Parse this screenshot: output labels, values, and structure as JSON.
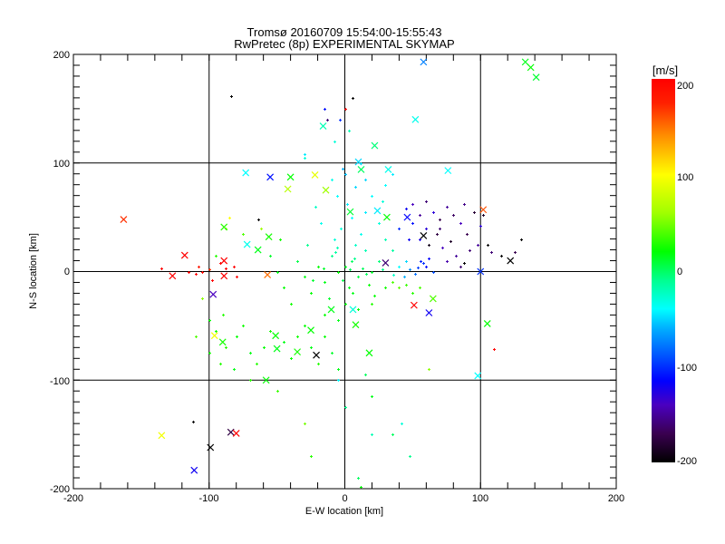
{
  "chart_data": {
    "type": "scatter",
    "title": "Tromsø 20160709 15:54:00-15:55:43",
    "subtitle": "RwPretec (8p) EXPERIMENTAL SKYMAP",
    "xlabel": "E-W location [km]",
    "ylabel": "N-S location [km]",
    "xlim": [
      -200,
      200
    ],
    "ylim": [
      -200,
      200
    ],
    "xticks": [
      "-200",
      "-100",
      "0",
      "100",
      "200"
    ],
    "yticks": [
      "-200",
      "-100",
      "0",
      "100",
      "200"
    ],
    "grid": true,
    "colorbar": {
      "label": "[m/s]",
      "range": [
        -200,
        200
      ],
      "ticks": [
        "-200",
        "-100",
        "0",
        "100",
        "200"
      ],
      "stops": [
        [
          -200,
          "#000000"
        ],
        [
          -170,
          "#3a0050"
        ],
        [
          -140,
          "#4a00c0"
        ],
        [
          -115,
          "#0000ff"
        ],
        [
          -60,
          "#00b0ff"
        ],
        [
          -40,
          "#00ffff"
        ],
        [
          -10,
          "#00ff90"
        ],
        [
          20,
          "#00ff00"
        ],
        [
          60,
          "#a0ff00"
        ],
        [
          100,
          "#ffff00"
        ],
        [
          140,
          "#ff9000"
        ],
        [
          175,
          "#ff2000"
        ],
        [
          200,
          "#ff0000"
        ]
      ]
    },
    "dots_fields": [
      "x_km",
      "y_km",
      "velocity_m_s"
    ],
    "dots": [
      [
        0,
        5,
        10
      ],
      [
        5,
        10,
        0
      ],
      [
        -5,
        0,
        20
      ],
      [
        10,
        -5,
        5
      ],
      [
        -10,
        15,
        -10
      ],
      [
        15,
        20,
        -20
      ],
      [
        -15,
        -10,
        15
      ],
      [
        20,
        0,
        10
      ],
      [
        25,
        10,
        -5
      ],
      [
        -20,
        5,
        20
      ],
      [
        3,
        -15,
        15
      ],
      [
        8,
        25,
        -25
      ],
      [
        -8,
        30,
        -30
      ],
      [
        12,
        35,
        -35
      ],
      [
        -3,
        40,
        -30
      ],
      [
        18,
        -12,
        20
      ],
      [
        30,
        -15,
        25
      ],
      [
        35,
        -10,
        40
      ],
      [
        40,
        -15,
        45
      ],
      [
        45,
        -12,
        35
      ],
      [
        50,
        -20,
        30
      ],
      [
        55,
        -15,
        40
      ],
      [
        -25,
        -20,
        20
      ],
      [
        -30,
        -5,
        15
      ],
      [
        -35,
        10,
        5
      ],
      [
        -28,
        25,
        -10
      ],
      [
        -18,
        45,
        -35
      ],
      [
        5,
        50,
        -40
      ],
      [
        15,
        55,
        -45
      ],
      [
        25,
        45,
        -30
      ],
      [
        30,
        30,
        -20
      ],
      [
        35,
        20,
        -15
      ],
      [
        40,
        5,
        -40
      ],
      [
        45,
        10,
        -50
      ],
      [
        -12,
        -25,
        10
      ],
      [
        0,
        -30,
        15
      ],
      [
        10,
        -35,
        20
      ],
      [
        20,
        -30,
        30
      ],
      [
        -5,
        -45,
        15
      ],
      [
        -15,
        -40,
        20
      ],
      [
        -40,
        -30,
        25
      ],
      [
        -45,
        -15,
        20
      ],
      [
        -50,
        0,
        15
      ],
      [
        -55,
        15,
        10
      ],
      [
        -48,
        30,
        25
      ],
      [
        2,
        62,
        -45
      ],
      [
        -6,
        70,
        -40
      ],
      [
        8,
        78,
        -50
      ],
      [
        0,
        90,
        -55
      ],
      [
        12,
        100,
        -45
      ],
      [
        -10,
        85,
        -35
      ],
      [
        20,
        70,
        -40
      ],
      [
        28,
        65,
        -30
      ],
      [
        -22,
        60,
        -25
      ],
      [
        4,
        2,
        0
      ],
      [
        -2,
        -8,
        5
      ],
      [
        7,
        12,
        -10
      ],
      [
        13,
        3,
        0
      ],
      [
        -7,
        18,
        -15
      ],
      [
        22,
        -22,
        20
      ],
      [
        -24,
        -8,
        10
      ],
      [
        16,
        -2,
        0
      ],
      [
        -16,
        3,
        10
      ],
      [
        6,
        -20,
        15
      ],
      [
        -6,
        22,
        -20
      ],
      [
        28,
        2,
        -10
      ],
      [
        36,
        -3,
        -25
      ],
      [
        44,
        -5,
        -60
      ],
      [
        52,
        -2,
        -80
      ],
      [
        58,
        8,
        -100
      ],
      [
        60,
        5,
        -110
      ],
      [
        56,
        10,
        -105
      ],
      [
        62,
        12,
        -115
      ],
      [
        54,
        4,
        -95
      ],
      [
        48,
        2,
        -70
      ],
      [
        65,
        0,
        -90
      ],
      [
        30,
        80,
        -40
      ],
      [
        35,
        90,
        -45
      ],
      [
        15,
        85,
        -50
      ],
      [
        -2,
        95,
        -60
      ],
      [
        -85,
        50,
        100
      ],
      [
        -88,
        40,
        60
      ],
      [
        -95,
        15,
        30
      ],
      [
        -62,
        40,
        60
      ],
      [
        -75,
        35,
        40
      ],
      [
        -30,
        108,
        -45
      ],
      [
        -8,
        120,
        -30
      ],
      [
        3,
        130,
        -20
      ],
      [
        6,
        160,
        -200
      ],
      [
        0,
        150,
        200
      ],
      [
        -15,
        150,
        -110
      ],
      [
        -13,
        140,
        -160
      ],
      [
        -4,
        140,
        -100
      ],
      [
        -84,
        162,
        -200
      ],
      [
        -30,
        105,
        -30
      ],
      [
        -64,
        48,
        -200
      ],
      [
        -115,
        0,
        200
      ],
      [
        -110,
        -2,
        200
      ],
      [
        -105,
        0,
        190
      ],
      [
        -92,
        8,
        200
      ],
      [
        -88,
        3,
        200
      ],
      [
        -82,
        5,
        200
      ],
      [
        -80,
        -5,
        200
      ],
      [
        -108,
        5,
        180
      ],
      [
        -135,
        3,
        200
      ],
      [
        -100,
        2,
        170
      ],
      [
        -98,
        -8,
        200
      ],
      [
        45,
        58,
        -120
      ],
      [
        50,
        62,
        -140
      ],
      [
        55,
        52,
        -150
      ],
      [
        60,
        65,
        -160
      ],
      [
        65,
        55,
        -130
      ],
      [
        70,
        48,
        -170
      ],
      [
        75,
        60,
        -150
      ],
      [
        80,
        52,
        -165
      ],
      [
        85,
        45,
        -140
      ],
      [
        88,
        62,
        -155
      ],
      [
        90,
        35,
        -170
      ],
      [
        95,
        55,
        -180
      ],
      [
        92,
        20,
        -160
      ],
      [
        98,
        25,
        -150
      ],
      [
        68,
        35,
        -175
      ],
      [
        72,
        22,
        -140
      ],
      [
        78,
        28,
        -185
      ],
      [
        82,
        15,
        -150
      ],
      [
        85,
        5,
        -160
      ],
      [
        60,
        40,
        -130
      ],
      [
        50,
        45,
        -110
      ],
      [
        55,
        30,
        -125
      ],
      [
        62,
        25,
        -190
      ],
      [
        75,
        10,
        -145
      ],
      [
        88,
        8,
        -200
      ],
      [
        100,
        42,
        -130
      ],
      [
        105,
        25,
        -200
      ],
      [
        108,
        18,
        -160
      ],
      [
        115,
        15,
        -200
      ],
      [
        130,
        30,
        -200
      ],
      [
        125,
        18,
        -170
      ],
      [
        102,
        52,
        -185
      ],
      [
        40,
        40,
        -100
      ],
      [
        47,
        30,
        -120
      ],
      [
        70,
        40,
        -160
      ],
      [
        -90,
        -40,
        30
      ],
      [
        -100,
        -45,
        20
      ],
      [
        -95,
        -55,
        25
      ],
      [
        -88,
        -70,
        30
      ],
      [
        -80,
        -60,
        20
      ],
      [
        -75,
        -50,
        25
      ],
      [
        -70,
        -75,
        15
      ],
      [
        -65,
        -85,
        30
      ],
      [
        -60,
        -70,
        20
      ],
      [
        -55,
        -55,
        25
      ],
      [
        -45,
        -65,
        15
      ],
      [
        -40,
        -80,
        20
      ],
      [
        -35,
        -60,
        25
      ],
      [
        -30,
        -50,
        20
      ],
      [
        -25,
        -70,
        15
      ],
      [
        -20,
        -85,
        30
      ],
      [
        -15,
        -60,
        20
      ],
      [
        -10,
        -75,
        10
      ],
      [
        -5,
        -90,
        15
      ],
      [
        -100,
        -75,
        25
      ],
      [
        -92,
        -85,
        30
      ],
      [
        -82,
        -90,
        15
      ],
      [
        -105,
        -25,
        55
      ],
      [
        -110,
        -60,
        40
      ],
      [
        -70,
        -100,
        30
      ],
      [
        -50,
        -110,
        35
      ],
      [
        -30,
        -140,
        50
      ],
      [
        -25,
        -170,
        30
      ],
      [
        0,
        -125,
        -10
      ],
      [
        10,
        -190,
        0
      ],
      [
        12,
        -198,
        20
      ],
      [
        20,
        -150,
        -20
      ],
      [
        35,
        -150,
        0
      ],
      [
        42,
        -140,
        -30
      ],
      [
        48,
        -170,
        -10
      ],
      [
        62,
        -90,
        55
      ],
      [
        -5,
        -100,
        -40
      ],
      [
        15,
        -95,
        0
      ],
      [
        -112,
        -138,
        -200
      ],
      [
        20,
        -115,
        15
      ],
      [
        110,
        -71,
        200
      ]
    ],
    "crosses": [
      [
        -163,
        48,
        170
      ],
      [
        -118,
        15,
        200
      ],
      [
        -89,
        10,
        200
      ],
      [
        -73,
        91,
        -40
      ],
      [
        -55,
        87,
        -110
      ],
      [
        -40,
        87,
        20
      ],
      [
        -42,
        76,
        70
      ],
      [
        -89,
        41,
        30
      ],
      [
        -72,
        25,
        -35
      ],
      [
        -64,
        20,
        15
      ],
      [
        -56,
        32,
        25
      ],
      [
        -16,
        134,
        -20
      ],
      [
        -22,
        89,
        90
      ],
      [
        -14,
        75,
        60
      ],
      [
        58,
        193,
        -75
      ],
      [
        52,
        140,
        -35
      ],
      [
        22,
        116,
        -5
      ],
      [
        133,
        193,
        15
      ],
      [
        137,
        188,
        20
      ],
      [
        141,
        179,
        10
      ],
      [
        76,
        93,
        -40
      ],
      [
        10,
        101,
        -50
      ],
      [
        12,
        94,
        0
      ],
      [
        32,
        94,
        -35
      ],
      [
        102,
        57,
        160
      ],
      [
        122,
        10,
        -200
      ],
      [
        58,
        33,
        -200
      ],
      [
        30,
        8,
        -160
      ],
      [
        46,
        50,
        -115
      ],
      [
        31,
        50,
        20
      ],
      [
        24,
        56,
        -45
      ],
      [
        4,
        55,
        10
      ],
      [
        -127,
        -4,
        200
      ],
      [
        -89,
        -4,
        200
      ],
      [
        -97,
        -21,
        -140
      ],
      [
        -96,
        -59,
        95
      ],
      [
        -90,
        -65,
        25
      ],
      [
        -51,
        -59,
        20
      ],
      [
        -50,
        -71,
        15
      ],
      [
        -35,
        -74,
        25
      ],
      [
        -21,
        -77,
        -200
      ],
      [
        -25,
        -54,
        20
      ],
      [
        -10,
        -35,
        15
      ],
      [
        -58,
        -100,
        20
      ],
      [
        -135,
        -151,
        95
      ],
      [
        -84,
        -148,
        -175
      ],
      [
        -80,
        -149,
        200
      ],
      [
        -99,
        -162,
        -200
      ],
      [
        -111,
        -183,
        -120
      ],
      [
        -57,
        -3,
        150
      ],
      [
        51,
        -31,
        200
      ],
      [
        62,
        -38,
        -120
      ],
      [
        105,
        -48,
        20
      ],
      [
        98,
        -96,
        -40
      ],
      [
        18,
        -75,
        20
      ],
      [
        8,
        -49,
        25
      ],
      [
        65,
        -25,
        40
      ],
      [
        6,
        -35,
        -30
      ],
      [
        100,
        0,
        -100
      ]
    ]
  }
}
